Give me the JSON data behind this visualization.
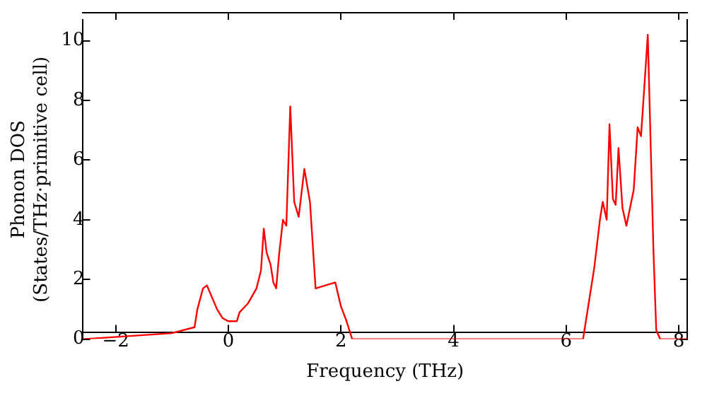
{
  "chart_data": {
    "type": "line",
    "xlabel": "Frequency (THz)",
    "ylabel": "Phonon DOS\n(States/THz·primitive cell)",
    "xlim": [
      -2.58,
      8.15
    ],
    "ylim": [
      0,
      10.7
    ],
    "xticks": [
      -2,
      0,
      2,
      4,
      6,
      8
    ],
    "yticks": [
      0,
      2,
      4,
      6,
      8,
      10
    ],
    "grid": false,
    "legend": false,
    "marker": "none",
    "line_style": "solid",
    "series": [
      {
        "color": "#ff0000",
        "x": [
          -2.58,
          -1,
          -0.6,
          -0.55,
          -0.45,
          -0.38,
          -0.2,
          -0.1,
          0,
          0.15,
          0.2,
          0.35,
          0.5,
          0.58,
          0.63,
          0.68,
          0.75,
          0.8,
          0.85,
          0.9,
          0.97,
          1.03,
          1.1,
          1.17,
          1.25,
          1.35,
          1.45,
          1.55,
          1.9,
          2.0,
          2.1,
          2.2,
          6.3,
          6.4,
          6.5,
          6.6,
          6.65,
          6.72,
          6.77,
          6.83,
          6.88,
          6.93,
          7.0,
          7.07,
          7.2,
          7.27,
          7.33,
          7.45,
          7.55,
          7.6,
          7.67,
          8.15
        ],
        "values": [
          0,
          0.2,
          0.4,
          1.0,
          1.7,
          1.8,
          1.0,
          0.7,
          0.6,
          0.6,
          0.9,
          1.2,
          1.7,
          2.3,
          3.7,
          2.9,
          2.5,
          1.9,
          1.7,
          2.8,
          4.0,
          3.8,
          7.8,
          4.6,
          4.1,
          5.7,
          4.6,
          1.7,
          1.9,
          1.1,
          0.6,
          0,
          0,
          1.2,
          2.4,
          4.0,
          4.6,
          4.0,
          7.2,
          4.7,
          4.5,
          6.4,
          4.4,
          3.8,
          5.0,
          7.1,
          6.8,
          10.2,
          3.0,
          0.3,
          0,
          0
        ]
      }
    ]
  }
}
